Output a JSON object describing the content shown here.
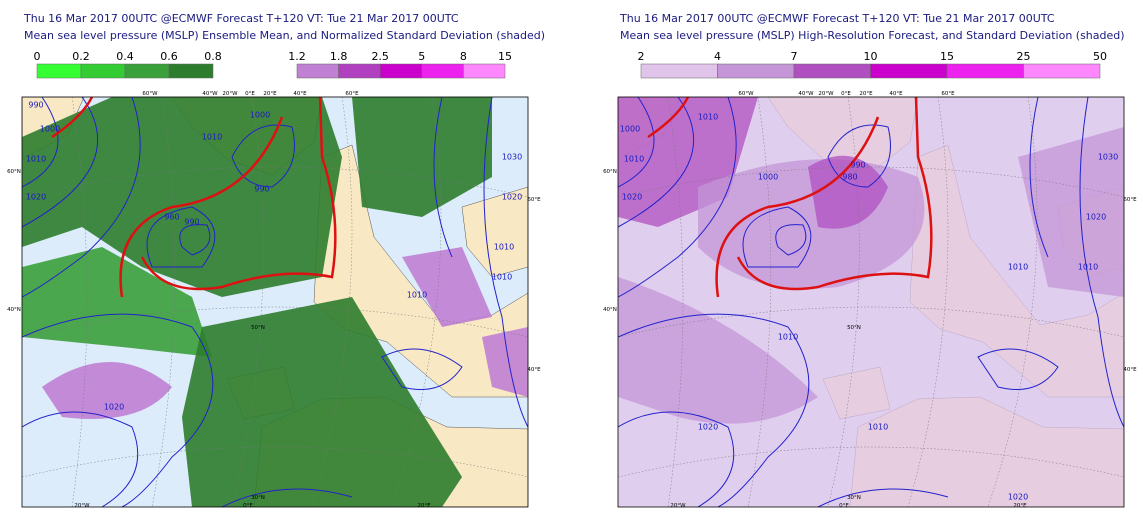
{
  "panels": [
    {
      "title": "Thu 16 Mar 2017 00UTC @ECMWF Forecast T+120 VT: Tue 21 Mar 2017 00UTC",
      "subtitle": "Mean sea level pressure (MSLP) Ensemble Mean, and Normalized Standard Deviation (shaded)",
      "legend": [
        {
          "labels": [
            "0",
            "0.2",
            "0.4",
            "0.6",
            "0.8"
          ],
          "colors": [
            "#33ff33",
            "#33cc33",
            "#3aa03a",
            "#2e7d2e"
          ]
        },
        {
          "labels": [
            "1.2",
            "1.8",
            "2.5",
            "5",
            "8",
            "15"
          ],
          "colors": [
            "#c080d4",
            "#b040c0",
            "#cc00cc",
            "#ee22ee",
            "#ff88ff"
          ]
        }
      ],
      "contour_labels": [
        "990",
        "1000",
        "1010",
        "1020",
        "1010",
        "990",
        "1000",
        "990",
        "960",
        "1030",
        "1020",
        "1010",
        "1010",
        "1010",
        "1020"
      ],
      "grid_labels": [
        "60°W",
        "40°W",
        "20°W",
        "0°E",
        "20°E",
        "40°E",
        "60°E",
        "60°N",
        "40°N",
        "60°E",
        "40°E",
        "50°N",
        "30°N",
        "20°W",
        "0°E",
        "20°E"
      ]
    },
    {
      "title": "Thu 16 Mar 2017 00UTC @ECMWF Forecast T+120 VT: Tue 21 Mar 2017 00UTC",
      "subtitle": "Mean sea level pressure (MSLP) High-Resolution Forecast, and Standard Deviation (shaded)",
      "legend": [
        {
          "labels": [
            "2",
            "4",
            "7",
            "10",
            "15",
            "25",
            "50"
          ],
          "colors": [
            "#e0c4ea",
            "#c496d8",
            "#b050c0",
            "#cc00cc",
            "#ee22ee",
            "#ff88ff"
          ]
        }
      ],
      "contour_labels": [
        "1000",
        "1010",
        "1020",
        "1010",
        "1000",
        "990",
        "980",
        "1030",
        "1020",
        "1010",
        "1010",
        "1010",
        "1020",
        "1010",
        "1020"
      ],
      "grid_labels": [
        "60°W",
        "40°W",
        "20°W",
        "0°E",
        "20°E",
        "40°E",
        "60°E",
        "60°N",
        "40°N",
        "60°E",
        "40°E",
        "50°N",
        "30°N",
        "20°W",
        "0°E",
        "20°E"
      ]
    }
  ]
}
